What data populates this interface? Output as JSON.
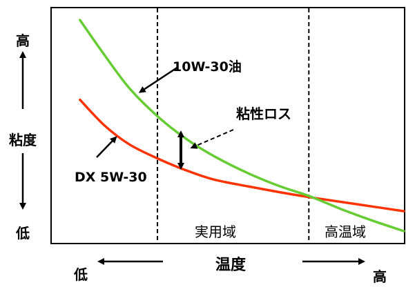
{
  "chart_data": {
    "type": "line",
    "title": "",
    "xlabel": "温度",
    "ylabel": "粘度",
    "x_low_label": "低",
    "x_high_label": "高",
    "y_high_label": "高",
    "y_low_label": "低",
    "x_range": [
      0,
      100
    ],
    "y_range": [
      0,
      100
    ],
    "grid": false,
    "regions": [
      {
        "label": "実用域",
        "from": 30,
        "to": 73
      },
      {
        "label": "高温域",
        "from": 73,
        "to": 100
      }
    ],
    "series": [
      {
        "name": "10W-30油",
        "color": "#66cc33",
        "x": [
          8,
          15,
          22,
          30,
          38,
          46,
          56,
          65,
          73,
          82,
          91,
          100
        ],
        "y": [
          95,
          80,
          66,
          54,
          44.5,
          37,
          29.5,
          24,
          20,
          14.5,
          9.5,
          5
        ]
      },
      {
        "name": "DX 5W-30",
        "color": "#ff3300",
        "x": [
          8,
          15,
          22,
          30,
          38,
          46,
          56,
          65,
          73,
          82,
          91,
          100
        ],
        "y": [
          61,
          50,
          42,
          36,
          31,
          27,
          24,
          21.5,
          19.5,
          17.5,
          15.5,
          13.5
        ]
      }
    ],
    "annotations": [
      {
        "text": "粘性ロス",
        "x": 33,
        "y": 45,
        "type": "double-arrow-between-series"
      }
    ]
  }
}
